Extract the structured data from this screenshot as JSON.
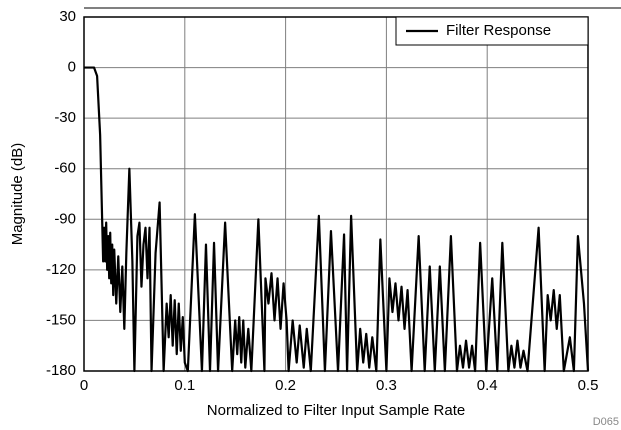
{
  "chart_data": {
    "type": "line",
    "xlabel": "Normalized to Filter Input Sample Rate",
    "ylabel": "Magnitude (dB)",
    "annotation": "D065",
    "xlim": [
      0,
      0.5
    ],
    "xticks": [
      0,
      0.1,
      0.2,
      0.3,
      0.4,
      0.5
    ],
    "ylim": [
      -180,
      30
    ],
    "yticks": [
      30,
      0,
      -30,
      -60,
      -90,
      -120,
      -150,
      -180
    ],
    "grid": true,
    "legend": "top-right",
    "series": [
      {
        "name": "Filter Response",
        "color": "#000000",
        "x": [
          0,
          0.01,
          0.013,
          0.016,
          0.018,
          0.019,
          0.02,
          0.021,
          0.022,
          0.023,
          0.024,
          0.025,
          0.026,
          0.027,
          0.028,
          0.029,
          0.03,
          0.032,
          0.034,
          0.036,
          0.038,
          0.04,
          0.042,
          0.045,
          0.048,
          0.05,
          0.053,
          0.055,
          0.057,
          0.059,
          0.061,
          0.063,
          0.065,
          0.067,
          0.071,
          0.075,
          0.079,
          0.082,
          0.084,
          0.086,
          0.088,
          0.09,
          0.092,
          0.094,
          0.096,
          0.098,
          0.1,
          0.103,
          0.11,
          0.117,
          0.121,
          0.125,
          0.129,
          0.133,
          0.14,
          0.147,
          0.15,
          0.152,
          0.154,
          0.156,
          0.158,
          0.16,
          0.163,
          0.166,
          0.173,
          0.179,
          0.18,
          0.183,
          0.186,
          0.189,
          0.192,
          0.195,
          0.198,
          0.201,
          0.203,
          0.207,
          0.211,
          0.214,
          0.218,
          0.221,
          0.225,
          0.233,
          0.239,
          0.245,
          0.252,
          0.258,
          0.261,
          0.265,
          0.271,
          0.274,
          0.277,
          0.28,
          0.283,
          0.286,
          0.29,
          0.294,
          0.3,
          0.303,
          0.306,
          0.309,
          0.312,
          0.315,
          0.318,
          0.321,
          0.325,
          0.332,
          0.338,
          0.343,
          0.348,
          0.353,
          0.358,
          0.364,
          0.37,
          0.373,
          0.376,
          0.379,
          0.382,
          0.385,
          0.388,
          0.393,
          0.399,
          0.405,
          0.41,
          0.415,
          0.421,
          0.424,
          0.427,
          0.43,
          0.433,
          0.436,
          0.44,
          0.451,
          0.457,
          0.46,
          0.463,
          0.466,
          0.469,
          0.472,
          0.476,
          0.482,
          0.486,
          0.49,
          0.496,
          0.5
        ],
        "values": [
          0,
          0,
          -5,
          -40,
          -90,
          -115,
          -95,
          -115,
          -92,
          -120,
          -100,
          -125,
          -98,
          -128,
          -105,
          -135,
          -108,
          -140,
          -112,
          -145,
          -118,
          -155,
          -110,
          -60,
          -115,
          -180,
          -100,
          -92,
          -130,
          -105,
          -95,
          -125,
          -95,
          -180,
          -110,
          -80,
          -180,
          -140,
          -160,
          -135,
          -165,
          -138,
          -170,
          -140,
          -168,
          -148,
          -175,
          -180,
          -87,
          -180,
          -105,
          -180,
          -104,
          -180,
          -92,
          -180,
          -150,
          -170,
          -148,
          -175,
          -150,
          -178,
          -155,
          -180,
          -90,
          -180,
          -125,
          -140,
          -122,
          -150,
          -125,
          -155,
          -128,
          -150,
          -180,
          -150,
          -175,
          -153,
          -178,
          -155,
          -180,
          -88,
          -180,
          -97,
          -180,
          -99,
          -180,
          -88,
          -180,
          -155,
          -175,
          -158,
          -178,
          -160,
          -180,
          -102,
          -180,
          -125,
          -145,
          -128,
          -150,
          -130,
          -155,
          -132,
          -180,
          -100,
          -180,
          -118,
          -180,
          -118,
          -180,
          -100,
          -180,
          -165,
          -178,
          -162,
          -178,
          -165,
          -180,
          -104,
          -180,
          -125,
          -180,
          -104,
          -180,
          -165,
          -178,
          -162,
          -178,
          -168,
          -180,
          -95,
          -180,
          -135,
          -150,
          -132,
          -155,
          -135,
          -180,
          -160,
          -180,
          -100,
          -140,
          -180
        ]
      }
    ]
  }
}
